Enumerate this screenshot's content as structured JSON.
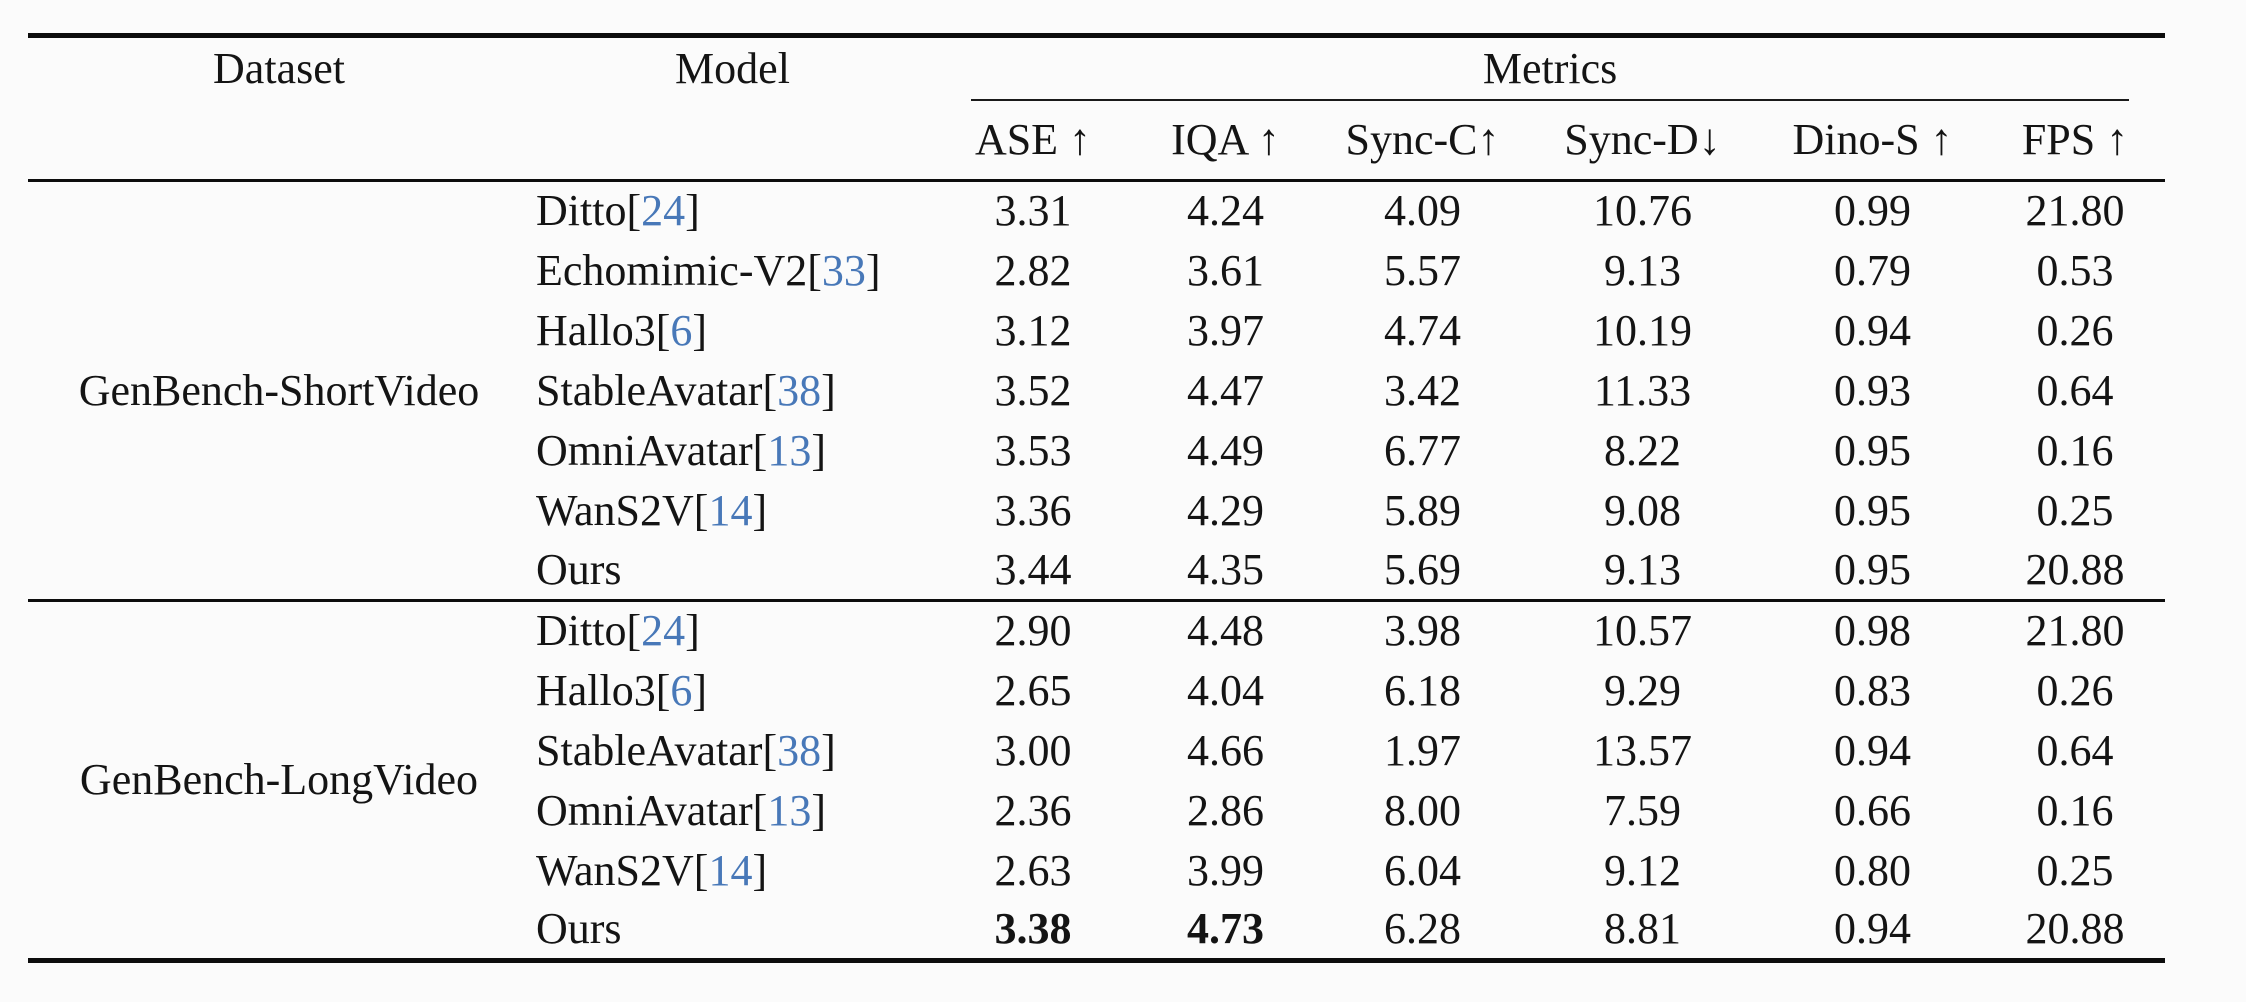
{
  "table": {
    "citation_color": "#4878b8",
    "header": {
      "dataset": "Dataset",
      "model": "Model",
      "metrics": "Metrics",
      "metric_columns": [
        "ASE ↑",
        "IQA ↑",
        "Sync-C↑",
        "Sync-D↓",
        "Dino-S ↑",
        "FPS ↑"
      ]
    },
    "citation_brackets": [
      "[",
      "]"
    ],
    "sections": [
      {
        "dataset": "GenBench-ShortVideo",
        "rows": [
          {
            "model": "Ditto",
            "cite": "24",
            "values": [
              "3.31",
              "4.24",
              "4.09",
              "10.76",
              "0.99",
              "21.80"
            ],
            "bold": []
          },
          {
            "model": "Echomimic-V2",
            "cite": "33",
            "values": [
              "2.82",
              "3.61",
              "5.57",
              "9.13",
              "0.79",
              "0.53"
            ],
            "bold": []
          },
          {
            "model": "Hallo3",
            "cite": "6",
            "values": [
              "3.12",
              "3.97",
              "4.74",
              "10.19",
              "0.94",
              "0.26"
            ],
            "bold": []
          },
          {
            "model": "StableAvatar",
            "cite": "38",
            "values": [
              "3.52",
              "4.47",
              "3.42",
              "11.33",
              "0.93",
              "0.64"
            ],
            "bold": []
          },
          {
            "model": "OmniAvatar",
            "cite": "13",
            "values": [
              "3.53",
              "4.49",
              "6.77",
              "8.22",
              "0.95",
              "0.16"
            ],
            "bold": []
          },
          {
            "model": "WanS2V",
            "cite": "14",
            "values": [
              "3.36",
              "4.29",
              "5.89",
              "9.08",
              "0.95",
              "0.25"
            ],
            "bold": []
          },
          {
            "model": "Ours",
            "cite": null,
            "values": [
              "3.44",
              "4.35",
              "5.69",
              "9.13",
              "0.95",
              "20.88"
            ],
            "bold": []
          }
        ]
      },
      {
        "dataset": "GenBench-LongVideo",
        "rows": [
          {
            "model": "Ditto",
            "cite": "24",
            "values": [
              "2.90",
              "4.48",
              "3.98",
              "10.57",
              "0.98",
              "21.80"
            ],
            "bold": []
          },
          {
            "model": "Hallo3",
            "cite": "6",
            "values": [
              "2.65",
              "4.04",
              "6.18",
              "9.29",
              "0.83",
              "0.26"
            ],
            "bold": []
          },
          {
            "model": "StableAvatar",
            "cite": "38",
            "values": [
              "3.00",
              "4.66",
              "1.97",
              "13.57",
              "0.94",
              "0.64"
            ],
            "bold": []
          },
          {
            "model": "OmniAvatar",
            "cite": "13",
            "values": [
              "2.36",
              "2.86",
              "8.00",
              "7.59",
              "0.66",
              "0.16"
            ],
            "bold": []
          },
          {
            "model": "WanS2V",
            "cite": "14",
            "values": [
              "2.63",
              "3.99",
              "6.04",
              "9.12",
              "0.80",
              "0.25"
            ],
            "bold": []
          },
          {
            "model": "Ours",
            "cite": null,
            "values": [
              "3.38",
              "4.73",
              "6.28",
              "8.81",
              "0.94",
              "20.88"
            ],
            "bold": [
              0,
              1
            ]
          }
        ]
      }
    ]
  }
}
